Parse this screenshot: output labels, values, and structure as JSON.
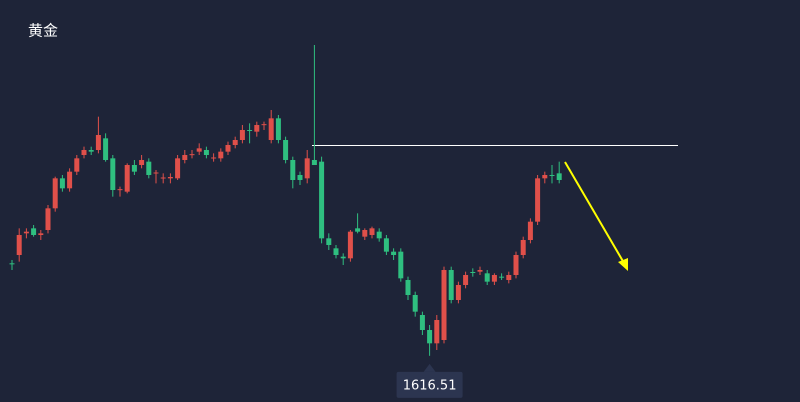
{
  "chart_data": {
    "type": "candlestick",
    "title": "黄金",
    "annotation": "1616.51",
    "up_color": "#e0504a",
    "down_color": "#2fbf80",
    "ylim": [
      1590,
      1830
    ],
    "open": [
      1672,
      1677,
      1690,
      1693,
      1689,
      1692,
      1705,
      1723,
      1717,
      1727,
      1737,
      1740,
      1740,
      1747,
      1735,
      1716,
      1715,
      1731,
      1731,
      1733,
      1726,
      1723,
      1723,
      1723,
      1734,
      1737,
      1739,
      1740,
      1735,
      1735,
      1739,
      1743,
      1746,
      1752,
      1751,
      1755,
      1746,
      1759,
      1746,
      1734,
      1725,
      1723,
      1734,
      1733,
      1687,
      1681,
      1676,
      1675,
      1693,
      1688,
      1689,
      1691,
      1687,
      1679,
      1679,
      1662,
      1653,
      1641,
      1632,
      1624,
      1626,
      1668,
      1650,
      1659,
      1666.8,
      1667,
      1666,
      1661,
      1664,
      1662,
      1665,
      1677,
      1686,
      1697,
      1723,
      1725,
      1726
    ],
    "high": [
      1674,
      1693,
      1693,
      1695,
      1692,
      1707,
      1724,
      1725,
      1729,
      1737,
      1742,
      1742,
      1760,
      1750,
      1737,
      1718,
      1732,
      1734,
      1737,
      1735,
      1728,
      1726,
      1726,
      1737,
      1740,
      1740,
      1744,
      1742,
      1738,
      1741,
      1745,
      1748,
      1755,
      1756,
      1757,
      1757,
      1764,
      1761,
      1748,
      1736,
      1727,
      1740,
      1803,
      1736,
      1690,
      1683,
      1678,
      1692,
      1702,
      1693,
      1694,
      1693,
      1689,
      1681,
      1681,
      1664,
      1655,
      1643,
      1635,
      1641,
      1670,
      1670,
      1661,
      1667,
      1669,
      1670,
      1668,
      1666,
      1666,
      1667,
      1679,
      1688,
      1699,
      1725,
      1727,
      1731,
      1733
    ],
    "low": [
      1668,
      1673,
      1687,
      1688,
      1686,
      1690,
      1703,
      1715,
      1715,
      1725,
      1735,
      1737,
      1738,
      1733,
      1712,
      1712,
      1714,
      1725,
      1729,
      1723,
      1720,
      1720,
      1720,
      1722,
      1732,
      1735,
      1737,
      1735,
      1733,
      1733,
      1737,
      1741,
      1744,
      1744,
      1748,
      1752,
      1744,
      1744,
      1732,
      1717,
      1719,
      1720,
      1731,
      1684,
      1680,
      1675,
      1671,
      1673,
      1690,
      1686,
      1687,
      1685,
      1677,
      1674,
      1661,
      1650,
      1640,
      1629,
      1616.51,
      1620,
      1624,
      1648,
      1648,
      1657,
      1664,
      1665,
      1659,
      1659,
      1662,
      1660,
      1663,
      1675,
      1684,
      1695,
      1720,
      1720,
      1720
    ],
    "close": [
      1671.5,
      1689,
      1691,
      1689,
      1690,
      1705,
      1723,
      1717,
      1727,
      1735,
      1740,
      1739,
      1749,
      1734,
      1716,
      1716.5,
      1731,
      1727,
      1734,
      1725,
      1726.5,
      1723.5,
      1723.8,
      1735,
      1737,
      1737.5,
      1741,
      1737,
      1735.5,
      1739,
      1743,
      1746,
      1752,
      1751.5,
      1755,
      1755.5,
      1759,
      1746,
      1734,
      1722,
      1722,
      1735,
      1731,
      1687,
      1683,
      1677,
      1675,
      1691,
      1691,
      1692,
      1693,
      1687,
      1679,
      1677,
      1663,
      1653,
      1643,
      1632,
      1624,
      1638,
      1668,
      1650,
      1659,
      1665,
      1666.5,
      1668,
      1661,
      1665,
      1663.5,
      1665,
      1677,
      1686,
      1697,
      1723,
      1725,
      1724.5,
      1722
    ]
  }
}
